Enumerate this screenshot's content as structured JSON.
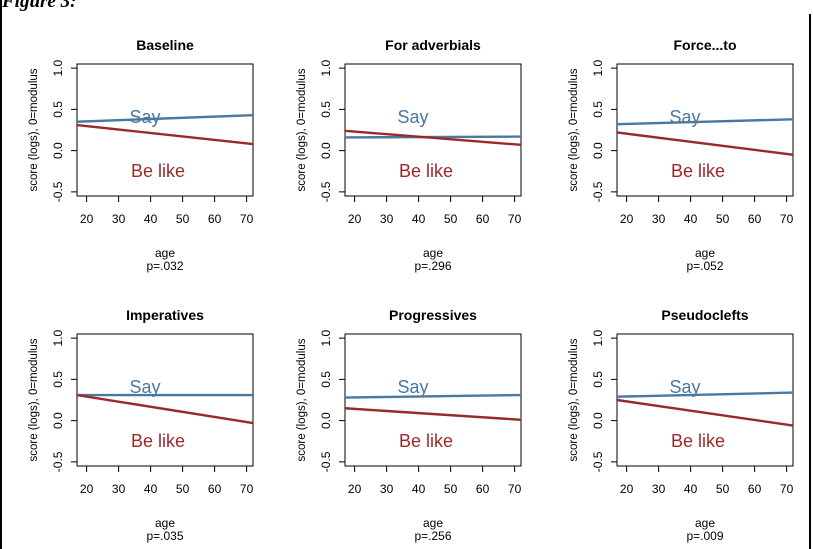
{
  "figure": {
    "caption": "Figure 3: ",
    "colors": {
      "say": "#4a78a0",
      "be_like": "#992a2a",
      "axis": "#000000",
      "background": "#ffffff"
    }
  },
  "chart_data": [
    {
      "type": "line",
      "title": "Baseline",
      "xlabel": "age",
      "ylabel": "score (logs), 0=modulus",
      "p_value": "p=.032",
      "xlim": [
        17,
        72
      ],
      "ylim": [
        -0.55,
        1.05
      ],
      "xticks": [
        20,
        30,
        40,
        50,
        60,
        70
      ],
      "yticks": [
        -0.5,
        0.0,
        0.5,
        1.0
      ],
      "xtick_labels": [
        "20",
        "30",
        "40",
        "50",
        "60",
        "70"
      ],
      "ytick_labels": [
        "-0.5",
        "0.0",
        "0.5",
        "1.0"
      ],
      "grid": false,
      "series": [
        {
          "name": "Say",
          "color": "#4a78a0",
          "x": [
            17,
            72
          ],
          "y": [
            0.35,
            0.43
          ]
        },
        {
          "name": "Be like",
          "color": "#992a2a",
          "x": [
            17,
            72
          ],
          "y": [
            0.31,
            0.08
          ]
        }
      ]
    },
    {
      "type": "line",
      "title": "For adverbials",
      "xlabel": "age",
      "ylabel": "score (logs), 0=modulus",
      "p_value": "p=.296",
      "xlim": [
        17,
        72
      ],
      "ylim": [
        -0.55,
        1.05
      ],
      "xticks": [
        20,
        30,
        40,
        50,
        60,
        70
      ],
      "yticks": [
        -0.5,
        0.0,
        0.5,
        1.0
      ],
      "xtick_labels": [
        "20",
        "30",
        "40",
        "50",
        "60",
        "70"
      ],
      "ytick_labels": [
        "-0.5",
        "0.0",
        "0.5",
        "1.0"
      ],
      "grid": false,
      "series": [
        {
          "name": "Say",
          "color": "#4a78a0",
          "x": [
            17,
            72
          ],
          "y": [
            0.16,
            0.17
          ]
        },
        {
          "name": "Be like",
          "color": "#992a2a",
          "x": [
            17,
            72
          ],
          "y": [
            0.24,
            0.07
          ]
        }
      ]
    },
    {
      "type": "line",
      "title": "Force...to",
      "xlabel": "age",
      "ylabel": "score (logs), 0=modulus",
      "p_value": "p=.052",
      "xlim": [
        17,
        72
      ],
      "ylim": [
        -0.55,
        1.05
      ],
      "xticks": [
        20,
        30,
        40,
        50,
        60,
        70
      ],
      "yticks": [
        -0.5,
        0.0,
        0.5,
        1.0
      ],
      "xtick_labels": [
        "20",
        "30",
        "40",
        "50",
        "60",
        "70"
      ],
      "ytick_labels": [
        "-0.5",
        "0.0",
        "0.5",
        "1.0"
      ],
      "grid": false,
      "series": [
        {
          "name": "Say",
          "color": "#4a78a0",
          "x": [
            17,
            72
          ],
          "y": [
            0.32,
            0.38
          ]
        },
        {
          "name": "Be like",
          "color": "#992a2a",
          "x": [
            17,
            72
          ],
          "y": [
            0.22,
            -0.05
          ]
        }
      ]
    },
    {
      "type": "line",
      "title": "Imperatives",
      "xlabel": "age",
      "ylabel": "score (logs), 0=modulus",
      "p_value": "p=.035",
      "xlim": [
        17,
        72
      ],
      "ylim": [
        -0.55,
        1.05
      ],
      "xticks": [
        20,
        30,
        40,
        50,
        60,
        70
      ],
      "yticks": [
        -0.5,
        0.0,
        0.5,
        1.0
      ],
      "xtick_labels": [
        "20",
        "30",
        "40",
        "50",
        "60",
        "70"
      ],
      "ytick_labels": [
        "-0.5",
        "0.0",
        "0.5",
        "1.0"
      ],
      "grid": false,
      "series": [
        {
          "name": "Say",
          "color": "#4a78a0",
          "x": [
            17,
            72
          ],
          "y": [
            0.31,
            0.31
          ]
        },
        {
          "name": "Be like",
          "color": "#992a2a",
          "x": [
            17,
            72
          ],
          "y": [
            0.31,
            -0.03
          ]
        }
      ]
    },
    {
      "type": "line",
      "title": "Progressives",
      "xlabel": "age",
      "ylabel": "score (logs), 0=modulus",
      "p_value": "p=.256",
      "xlim": [
        17,
        72
      ],
      "ylim": [
        -0.55,
        1.05
      ],
      "xticks": [
        20,
        30,
        40,
        50,
        60,
        70
      ],
      "yticks": [
        -0.5,
        0.0,
        0.5,
        1.0
      ],
      "xtick_labels": [
        "20",
        "30",
        "40",
        "50",
        "60",
        "70"
      ],
      "ytick_labels": [
        "-0.5",
        "0.0",
        "0.5",
        "1.0"
      ],
      "grid": false,
      "series": [
        {
          "name": "Say",
          "color": "#4a78a0",
          "x": [
            17,
            72
          ],
          "y": [
            0.28,
            0.31
          ]
        },
        {
          "name": "Be like",
          "color": "#992a2a",
          "x": [
            17,
            72
          ],
          "y": [
            0.15,
            0.01
          ]
        }
      ]
    },
    {
      "type": "line",
      "title": "Pseudoclefts",
      "xlabel": "age",
      "ylabel": "score (logs), 0=modulus",
      "p_value": "p=.009",
      "xlim": [
        17,
        72
      ],
      "ylim": [
        -0.55,
        1.05
      ],
      "xticks": [
        20,
        30,
        40,
        50,
        60,
        70
      ],
      "yticks": [
        -0.5,
        0.0,
        0.5,
        1.0
      ],
      "xtick_labels": [
        "20",
        "30",
        "40",
        "50",
        "60",
        "70"
      ],
      "ytick_labels": [
        "-0.5",
        "0.0",
        "0.5",
        "1.0"
      ],
      "grid": false,
      "series": [
        {
          "name": "Say",
          "color": "#4a78a0",
          "x": [
            17,
            72
          ],
          "y": [
            0.29,
            0.34
          ]
        },
        {
          "name": "Be like",
          "color": "#992a2a",
          "x": [
            17,
            72
          ],
          "y": [
            0.25,
            -0.06
          ]
        }
      ]
    }
  ]
}
